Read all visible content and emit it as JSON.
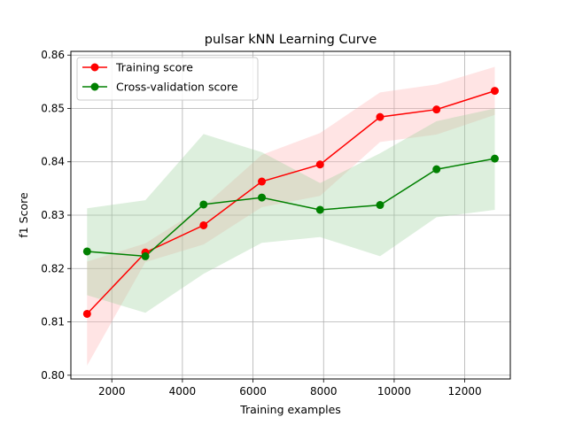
{
  "chart_data": {
    "type": "line",
    "title": "pulsar kNN Learning Curve",
    "xlabel": "Training examples",
    "ylabel": "f1 Score",
    "xlim": [
      840,
      13290
    ],
    "ylim": [
      0.7993,
      0.8607
    ],
    "grid": true,
    "legend_position": "top-left",
    "x": [
      1300,
      2950,
      4600,
      6250,
      7900,
      9600,
      11200,
      12850
    ],
    "x_ticks": [
      2000,
      4000,
      6000,
      8000,
      10000,
      12000
    ],
    "x_tick_labels": [
      "2000",
      "4000",
      "6000",
      "8000",
      "10000",
      "12000"
    ],
    "y_ticks": [
      0.8,
      0.81,
      0.82,
      0.83,
      0.84,
      0.85,
      0.86
    ],
    "y_tick_labels": [
      "0.80",
      "0.81",
      "0.82",
      "0.83",
      "0.84",
      "0.85",
      "0.86"
    ],
    "series": [
      {
        "name": "Training score",
        "color": "#ff0000",
        "band_color": "#ffb3b3",
        "values": [
          0.8115,
          0.823,
          0.8281,
          0.8363,
          0.8395,
          0.8484,
          0.8498,
          0.8533
        ],
        "upper": [
          0.8213,
          0.8247,
          0.8316,
          0.8413,
          0.8454,
          0.853,
          0.8545,
          0.8578
        ],
        "lower": [
          0.8018,
          0.8212,
          0.8245,
          0.8315,
          0.8336,
          0.8437,
          0.8451,
          0.8488
        ]
      },
      {
        "name": "Cross-validation score",
        "color": "#008000",
        "band_color": "#9fd19f",
        "values": [
          0.8232,
          0.8223,
          0.832,
          0.8333,
          0.831,
          0.8319,
          0.8386,
          0.8406
        ],
        "upper": [
          0.8313,
          0.8328,
          0.8452,
          0.8418,
          0.836,
          0.8416,
          0.8476,
          0.85
        ],
        "lower": [
          0.815,
          0.8117,
          0.819,
          0.8248,
          0.8259,
          0.8223,
          0.8296,
          0.831
        ]
      }
    ]
  }
}
